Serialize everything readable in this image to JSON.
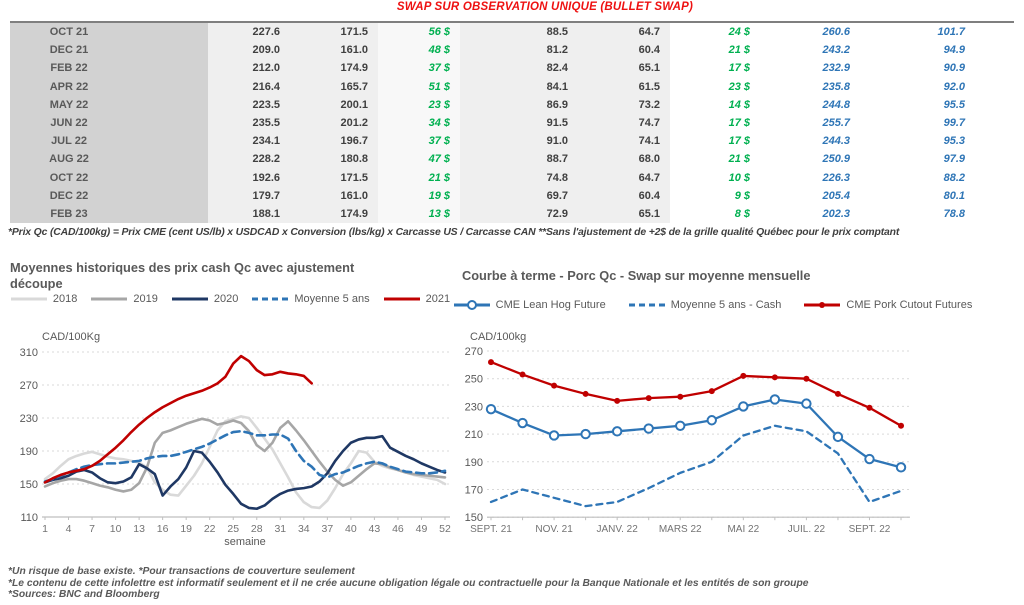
{
  "page": {
    "table_title": "SWAP SUR OBSERVATION UNIQUE (BULLET SWAP)",
    "table_footnote": "*Prix Qc (CAD/100kg) = Prix CME (cent US/lb) x USDCAD x Conversion (lbs/kg) x Carcasse US / Carcasse CAN **Sans l'ajustement de +2$ de la grille qualité Québec pour le prix comptant",
    "footnotes": [
      "*Un risque de base existe. *Pour transactions de couverture seulement",
      "*Le contenu de cette infolettre est informatif seulement et il ne crée aucune obligation légale ou contractuelle pour la Banque Nationale et les entités de son groupe",
      "*Sources: BNC and Bloomberg"
    ]
  },
  "colors": {
    "title_red": "#ee1111",
    "green_value": "#00b050",
    "blue_value": "#2e75b6",
    "navy_line": "#1f3864",
    "red_line": "#c00000",
    "gray_2018": "#d9d9d9",
    "gray_2019": "#a6a6a6",
    "grid": "#d9d9d9",
    "axis": "#bfbfbf",
    "tick_text": "#595959"
  },
  "table": {
    "rows": [
      [
        "OCT 21",
        "227.6",
        "171.5",
        "56 $",
        "88.5",
        "64.7",
        "24 $",
        "260.6",
        "101.7"
      ],
      [
        "DEC 21",
        "209.0",
        "161.0",
        "48 $",
        "81.2",
        "60.4",
        "21 $",
        "243.2",
        "94.9"
      ],
      [
        "FEB 22",
        "212.0",
        "174.9",
        "37 $",
        "82.4",
        "65.1",
        "17 $",
        "232.9",
        "90.9"
      ],
      [
        "APR 22",
        "216.4",
        "165.7",
        "51 $",
        "84.1",
        "61.5",
        "23 $",
        "235.8",
        "92.0"
      ],
      [
        "MAY 22",
        "223.5",
        "200.1",
        "23 $",
        "86.9",
        "73.2",
        "14 $",
        "244.8",
        "95.5"
      ],
      [
        "JUN 22",
        "235.5",
        "201.2",
        "34 $",
        "91.5",
        "74.7",
        "17 $",
        "255.7",
        "99.7"
      ],
      [
        "JUL 22",
        "234.1",
        "196.7",
        "37 $",
        "91.0",
        "74.1",
        "17 $",
        "244.3",
        "95.3"
      ],
      [
        "AUG 22",
        "228.2",
        "180.8",
        "47 $",
        "88.7",
        "68.0",
        "21 $",
        "250.9",
        "97.9"
      ],
      [
        "OCT 22",
        "192.6",
        "171.5",
        "21 $",
        "74.8",
        "64.7",
        "10 $",
        "226.3",
        "88.2"
      ],
      [
        "DEC 22",
        "179.7",
        "161.0",
        "19 $",
        "69.7",
        "60.4",
        "9 $",
        "205.4",
        "80.1"
      ],
      [
        "FEB 23",
        "188.1",
        "174.9",
        "13 $",
        "72.9",
        "65.1",
        "8 $",
        "202.3",
        "78.8"
      ]
    ]
  },
  "chart_data": [
    {
      "type": "line",
      "title": "Moyennes historiques des prix cash Qc avec ajustement découpe",
      "xlabel": "semaine",
      "ylabel": "CAD/100Kg",
      "ylim": [
        110,
        310
      ],
      "yticks": [
        110,
        150,
        190,
        230,
        270,
        310
      ],
      "xticks": [
        1,
        4,
        7,
        10,
        13,
        16,
        19,
        22,
        25,
        28,
        31,
        34,
        37,
        40,
        43,
        46,
        49,
        52
      ],
      "grid": "horizontal-dashed",
      "legend_position": "top",
      "series": [
        {
          "name": "2018",
          "color": "#d9d9d9",
          "dash": false,
          "start_week": 1,
          "values": [
            156,
            163,
            172,
            180,
            184,
            187,
            189,
            186,
            183,
            181,
            180,
            178,
            176,
            170,
            152,
            143,
            137,
            136,
            148,
            160,
            175,
            195,
            215,
            226,
            229,
            232,
            230,
            218,
            205,
            192,
            175,
            158,
            140,
            128,
            122,
            121,
            130,
            145,
            162,
            175,
            190,
            188,
            177,
            172,
            169,
            167,
            164,
            161,
            159,
            157,
            155,
            150
          ]
        },
        {
          "name": "2019",
          "color": "#a6a6a6",
          "dash": false,
          "start_week": 1,
          "values": [
            147,
            151,
            154,
            156,
            156,
            154,
            151,
            148,
            146,
            143,
            141,
            143,
            151,
            170,
            200,
            212,
            215,
            219,
            223,
            226,
            229,
            227,
            222,
            224,
            227,
            224,
            214,
            197,
            190,
            200,
            218,
            226,
            215,
            203,
            190,
            177,
            165,
            155,
            148,
            152,
            160,
            168,
            175,
            174,
            170,
            167,
            164,
            162,
            161,
            160,
            159,
            158
          ]
        },
        {
          "name": "2020",
          "color": "#1f3864",
          "dash": false,
          "start_week": 1,
          "values": [
            152,
            155,
            157,
            160,
            165,
            167,
            164,
            157,
            152,
            151,
            153,
            158,
            174,
            169,
            162,
            136,
            147,
            156,
            170,
            190,
            188,
            177,
            164,
            149,
            138,
            126,
            121,
            120,
            124,
            132,
            138,
            142,
            144,
            145,
            147,
            153,
            163,
            178,
            190,
            200,
            204,
            206,
            206,
            208,
            194,
            189,
            184,
            180,
            175,
            171,
            167,
            164
          ]
        },
        {
          "name": "Moyenne 5 ans",
          "color": "#2e75b6",
          "dash": true,
          "start_week": 1,
          "values": [
            153,
            156,
            160,
            164,
            168,
            171,
            173,
            174,
            175,
            175,
            176,
            177,
            178,
            181,
            183,
            184,
            184,
            186,
            189,
            192,
            195,
            199,
            204,
            209,
            213,
            214,
            212,
            209,
            209,
            210,
            210,
            205,
            190,
            178,
            171,
            161,
            158,
            162,
            164,
            168,
            172,
            175,
            177,
            175,
            171,
            168,
            165,
            164,
            163,
            163,
            164,
            166
          ]
        },
        {
          "name": "2021",
          "color": "#c00000",
          "dash": false,
          "start_week": 1,
          "values": [
            152,
            157,
            161,
            164,
            166,
            168,
            172,
            178,
            186,
            194,
            203,
            213,
            222,
            230,
            237,
            243,
            248,
            253,
            257,
            260,
            263,
            267,
            272,
            280,
            296,
            305,
            299,
            288,
            282,
            283,
            286,
            284,
            283,
            281,
            272
          ]
        }
      ]
    },
    {
      "type": "line",
      "title": "Courbe à terme - Porc Qc - Swap sur moyenne mensuelle",
      "ylabel": "CAD/100kg",
      "ylim": [
        150,
        270
      ],
      "yticks": [
        150,
        170,
        190,
        210,
        230,
        250,
        270
      ],
      "n_points": 14,
      "x_tick_labels": [
        "SEPT. 21",
        "NOV. 21",
        "JANV. 22",
        "MARS 22",
        "MAI 22",
        "JUIL. 22",
        "SEPT. 22"
      ],
      "points_per_tick": 2,
      "grid": "horizontal-dashed",
      "legend_position": "top",
      "series": [
        {
          "name": "Moyenne 5 ans - Cash",
          "color": "#2e75b6",
          "dash": true,
          "marker": "none",
          "values": [
            161,
            170,
            164,
            158,
            161,
            171,
            182,
            190,
            209,
            216,
            212,
            196,
            161,
            169
          ]
        },
        {
          "name": "CME Pork Cutout Futures",
          "color": "#c00000",
          "dash": false,
          "marker": "dot",
          "values": [
            262,
            253,
            245,
            239,
            234,
            236,
            237,
            241,
            252,
            251,
            250,
            239,
            229,
            216
          ]
        },
        {
          "name": "CME Lean Hog Future",
          "color": "#2e75b6",
          "dash": false,
          "marker": "open",
          "values": [
            228,
            218,
            209,
            210,
            212,
            214,
            216,
            220,
            230,
            235,
            232,
            208,
            192,
            186
          ]
        }
      ],
      "legend_order": [
        "CME Lean Hog Future",
        "Moyenne 5 ans - Cash",
        "CME Pork Cutout Futures"
      ]
    }
  ]
}
